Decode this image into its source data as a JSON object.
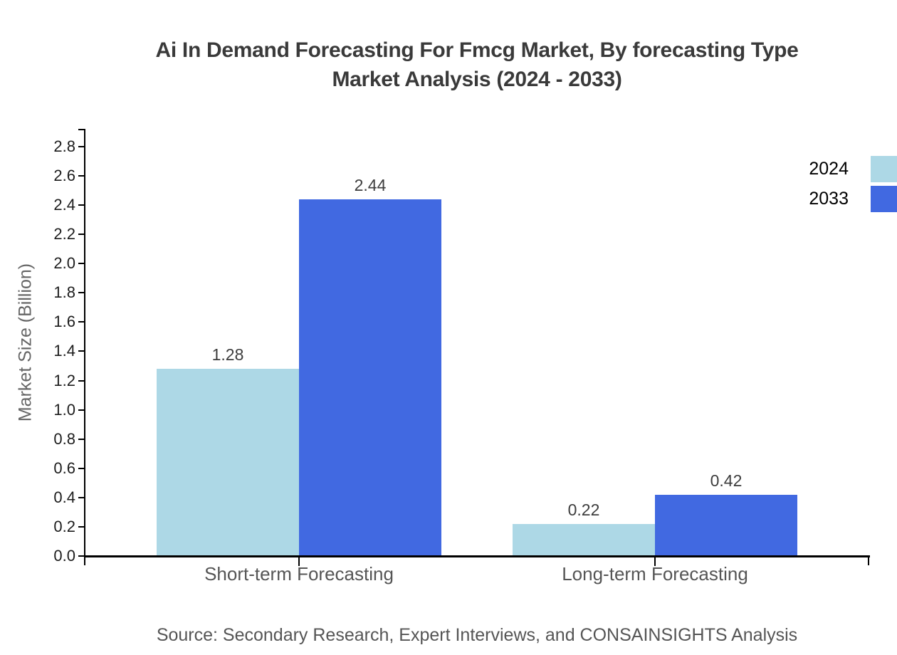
{
  "page": {
    "title_line1": "Ai In Demand Forecasting For Fmcg Market, By forecasting Type",
    "title_line2": "Market Analysis (2024 - 2033)",
    "source": "Source: Secondary Research, Expert Interviews, and CONSAINSIGHTS Analysis"
  },
  "chart_data": {
    "type": "bar",
    "title": "Ai In Demand Forecasting For Fmcg Market, By forecasting Type Market Analysis (2024 - 2033)",
    "categories": [
      "Short-term Forecasting",
      "Long-term Forecasting"
    ],
    "series": [
      {
        "name": "2024",
        "color": "#ADD8E6",
        "values": [
          1.28,
          0.22
        ]
      },
      {
        "name": "2033",
        "color": "#4169E1",
        "values": [
          2.44,
          0.42
        ]
      }
    ],
    "xlabel": "",
    "ylabel": "Market Size (Billion)",
    "ylim": [
      0,
      2.8
    ],
    "ytick_step": 0.2,
    "ytick_decimals": 1,
    "value_label_decimals": 2,
    "grid": false,
    "bar_value_labels": true,
    "legend_position": "top-right"
  },
  "legend": {
    "items": [
      {
        "label": "2024",
        "color": "#ADD8E6"
      },
      {
        "label": "2033",
        "color": "#4169E1"
      }
    ]
  },
  "colors": {
    "background": "#FFFFFF",
    "title_text": "#3A3A3A",
    "axis_line": "#000000",
    "tick_label": "#1C1C1C",
    "value_label": "#3D3D3D",
    "category_label": "#555555",
    "axis_title": "#666666",
    "legend_label": "#000000",
    "source_text": "#555555"
  }
}
